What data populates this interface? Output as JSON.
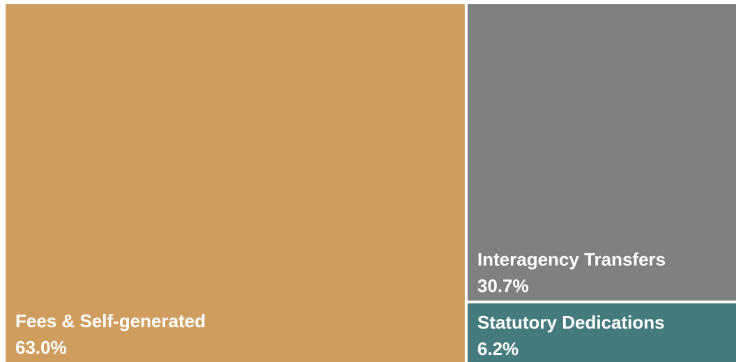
{
  "chart_data": {
    "type": "treemap",
    "categories": [
      "Fees & Self-generated",
      "Interagency Transfers",
      "Statutory Dedications"
    ],
    "values": [
      63.0,
      30.7,
      6.2
    ],
    "value_labels": [
      "63.0%",
      "30.7%",
      "6.2%"
    ],
    "colors": [
      "#cf9e5f",
      "#808080",
      "#457b7d"
    ]
  }
}
